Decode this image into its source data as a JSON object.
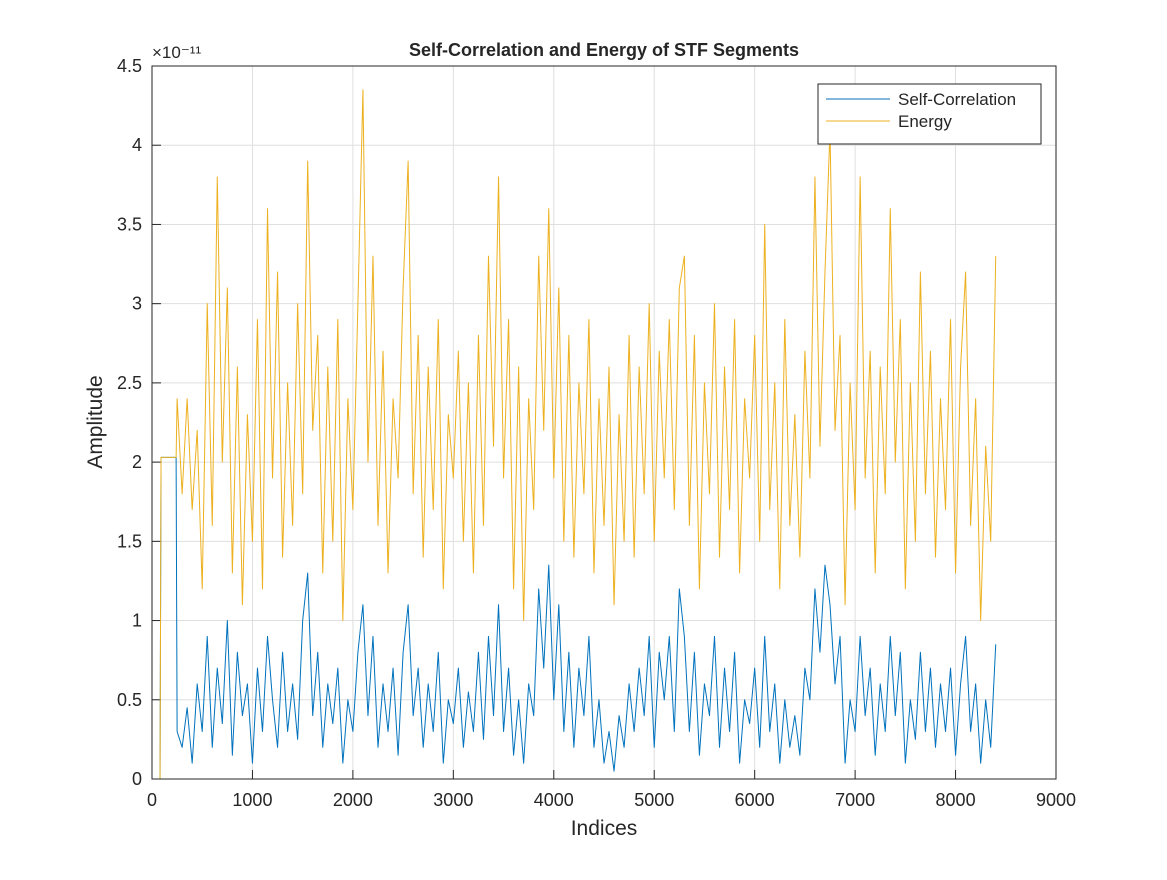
{
  "chart_data": {
    "type": "line",
    "title": "Self-Correlation and Energy of STF Segments",
    "x_label": "Indices",
    "y_label": "Amplitude",
    "y_scale_label": "×10⁻¹¹",
    "xlim": [
      0,
      9000
    ],
    "xticks": [
      0,
      1000,
      2000,
      3000,
      4000,
      5000,
      6000,
      7000,
      8000,
      9000
    ],
    "ylim": [
      0,
      4.5
    ],
    "yticks": [
      0,
      0.5,
      1,
      1.5,
      2,
      2.5,
      3,
      3.5,
      4,
      4.5
    ],
    "grid": true,
    "legend_position": "top-right",
    "x": [
      0,
      80,
      90,
      240,
      250,
      300,
      350,
      400,
      450,
      500,
      550,
      600,
      650,
      700,
      750,
      800,
      850,
      900,
      950,
      1000,
      1050,
      1100,
      1150,
      1200,
      1250,
      1300,
      1350,
      1400,
      1450,
      1500,
      1550,
      1600,
      1650,
      1700,
      1750,
      1800,
      1850,
      1900,
      1950,
      2000,
      2050,
      2100,
      2150,
      2200,
      2250,
      2300,
      2350,
      2400,
      2450,
      2500,
      2550,
      2600,
      2650,
      2700,
      2750,
      2800,
      2850,
      2900,
      2950,
      3000,
      3050,
      3100,
      3150,
      3200,
      3250,
      3300,
      3350,
      3400,
      3450,
      3500,
      3550,
      3600,
      3650,
      3700,
      3750,
      3800,
      3850,
      3900,
      3950,
      4000,
      4050,
      4100,
      4150,
      4200,
      4250,
      4300,
      4350,
      4400,
      4450,
      4500,
      4550,
      4600,
      4650,
      4700,
      4750,
      4800,
      4850,
      4900,
      4950,
      5000,
      5050,
      5100,
      5150,
      5200,
      5250,
      5300,
      5350,
      5400,
      5450,
      5500,
      5550,
      5600,
      5650,
      5700,
      5750,
      5800,
      5850,
      5900,
      5950,
      6000,
      6050,
      6100,
      6150,
      6200,
      6250,
      6300,
      6350,
      6400,
      6450,
      6500,
      6550,
      6600,
      6650,
      6700,
      6750,
      6800,
      6850,
      6900,
      6950,
      7000,
      7050,
      7100,
      7150,
      7200,
      7250,
      7300,
      7350,
      7400,
      7450,
      7500,
      7550,
      7600,
      7650,
      7700,
      7750,
      7800,
      7850,
      7900,
      7950,
      8000,
      8050,
      8100,
      8150,
      8200,
      8250,
      8300,
      8350,
      8400
    ],
    "series": [
      {
        "name": "Self-Correlation",
        "color": "#0072BD",
        "values": [
          0,
          0,
          2.03,
          2.03,
          0.3,
          0.2,
          0.45,
          0.1,
          0.6,
          0.3,
          0.9,
          0.2,
          0.7,
          0.35,
          1.0,
          0.15,
          0.8,
          0.4,
          0.6,
          0.1,
          0.7,
          0.3,
          0.9,
          0.5,
          0.2,
          0.8,
          0.3,
          0.6,
          0.25,
          1.0,
          1.3,
          0.4,
          0.8,
          0.2,
          0.6,
          0.35,
          0.7,
          0.1,
          0.5,
          0.3,
          0.8,
          1.1,
          0.4,
          0.9,
          0.2,
          0.6,
          0.3,
          0.7,
          0.15,
          0.8,
          1.1,
          0.4,
          0.7,
          0.2,
          0.6,
          0.3,
          0.8,
          0.1,
          0.5,
          0.35,
          0.7,
          0.2,
          0.55,
          0.3,
          0.8,
          0.25,
          0.9,
          0.4,
          1.1,
          0.3,
          0.7,
          0.15,
          0.5,
          0.1,
          0.6,
          0.4,
          1.2,
          0.7,
          1.35,
          0.5,
          1.1,
          0.3,
          0.8,
          0.2,
          0.7,
          0.4,
          0.9,
          0.2,
          0.5,
          0.1,
          0.3,
          0.05,
          0.4,
          0.2,
          0.6,
          0.3,
          0.7,
          0.4,
          0.9,
          0.2,
          0.8,
          0.5,
          0.9,
          0.3,
          1.2,
          0.9,
          0.3,
          0.8,
          0.15,
          0.6,
          0.4,
          0.9,
          0.2,
          0.7,
          0.3,
          0.8,
          0.1,
          0.5,
          0.35,
          0.7,
          0.2,
          0.9,
          0.3,
          0.6,
          0.1,
          0.5,
          0.2,
          0.4,
          0.15,
          0.7,
          0.5,
          1.2,
          0.8,
          1.35,
          1.1,
          0.6,
          0.9,
          0.1,
          0.5,
          0.3,
          0.9,
          0.4,
          0.7,
          0.15,
          0.6,
          0.3,
          0.9,
          0.4,
          0.8,
          0.1,
          0.5,
          0.25,
          0.8,
          0.3,
          0.7,
          0.2,
          0.6,
          0.3,
          0.7,
          0.15,
          0.6,
          0.9,
          0.3,
          0.6,
          0.1,
          0.5,
          0.2,
          0.85
        ]
      },
      {
        "name": "Energy",
        "color": "#EDB120",
        "values": [
          0,
          0,
          2.03,
          2.03,
          2.4,
          1.8,
          2.4,
          1.7,
          2.2,
          1.2,
          3.0,
          1.6,
          3.8,
          2.0,
          3.1,
          1.3,
          2.6,
          1.1,
          2.3,
          1.5,
          2.9,
          1.2,
          3.6,
          1.9,
          3.2,
          1.4,
          2.5,
          1.6,
          3.0,
          1.8,
          3.9,
          2.2,
          2.8,
          1.3,
          2.6,
          1.5,
          2.9,
          1.0,
          2.4,
          1.7,
          3.0,
          4.35,
          2.0,
          3.3,
          1.6,
          2.7,
          1.3,
          2.4,
          1.9,
          3.1,
          3.9,
          1.8,
          2.8,
          1.4,
          2.6,
          1.7,
          2.9,
          1.2,
          2.3,
          1.9,
          2.7,
          1.5,
          2.5,
          1.3,
          2.8,
          1.6,
          3.3,
          2.1,
          3.8,
          1.9,
          2.9,
          1.2,
          2.6,
          1.0,
          2.4,
          1.7,
          3.3,
          2.2,
          3.6,
          1.9,
          3.1,
          1.5,
          2.8,
          1.4,
          2.5,
          1.8,
          2.9,
          1.3,
          2.4,
          1.6,
          2.6,
          1.1,
          2.3,
          1.5,
          2.8,
          1.4,
          2.6,
          1.8,
          3.0,
          1.5,
          2.7,
          1.9,
          2.9,
          1.7,
          3.1,
          3.3,
          1.6,
          2.8,
          1.2,
          2.5,
          1.8,
          3.0,
          1.4,
          2.6,
          1.7,
          2.9,
          1.3,
          2.4,
          1.9,
          2.8,
          1.5,
          3.5,
          1.7,
          2.5,
          1.2,
          2.9,
          1.6,
          2.3,
          1.4,
          2.7,
          1.9,
          3.8,
          2.1,
          3.2,
          4.1,
          2.2,
          2.8,
          1.1,
          2.5,
          1.7,
          3.8,
          1.9,
          2.7,
          1.3,
          2.6,
          1.8,
          3.6,
          2.0,
          2.9,
          1.2,
          2.5,
          1.5,
          3.2,
          1.8,
          2.7,
          1.4,
          2.4,
          1.7,
          2.9,
          1.3,
          2.6,
          3.2,
          1.6,
          2.4,
          1.0,
          2.1,
          1.5,
          3.3
        ]
      }
    ]
  }
}
